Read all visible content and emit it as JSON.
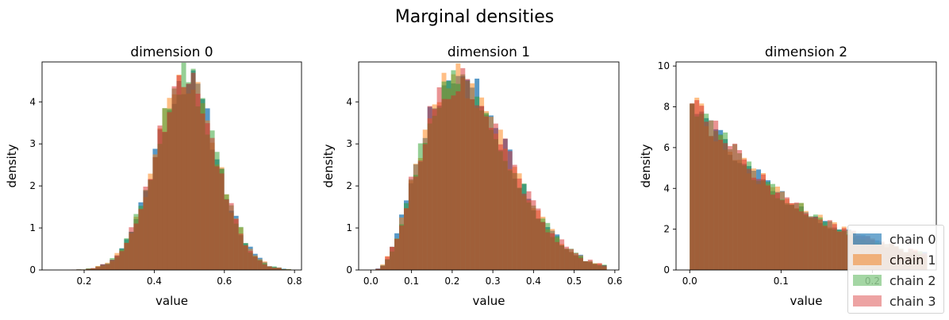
{
  "figure": {
    "title": "Marginal densities"
  },
  "colors": {
    "chain0": "#1f77b4",
    "chain1": "#ff7f0e",
    "chain2": "#2ca02c",
    "chain3": "#d62728"
  },
  "legend": {
    "position": "lower right",
    "entries": [
      {
        "label": "chain 0",
        "color": "#1f77b4"
      },
      {
        "label": "chain 1",
        "color": "#ff7f0e"
      },
      {
        "label": "chain 2",
        "color": "#2ca02c"
      },
      {
        "label": "chain 3",
        "color": "#d62728"
      }
    ]
  },
  "chart_data": [
    {
      "type": "bar",
      "title": "dimension 0",
      "xlabel": "value",
      "ylabel": "density",
      "xlim": [
        0.08,
        0.82
      ],
      "ylim": [
        0,
        4.95
      ],
      "xticks": [
        0.2,
        0.4,
        0.6,
        0.8
      ],
      "xtick_labels": [
        "0.2",
        "0.4",
        "0.6",
        "0.8"
      ],
      "yticks": [
        0,
        1,
        2,
        3,
        4
      ],
      "ytick_labels": [
        "0",
        "1",
        "2",
        "3",
        "4"
      ],
      "bins": {
        "start": 0.11,
        "end": 0.79,
        "count": 50
      },
      "density": {
        "shape": "normal",
        "mean": 0.49,
        "sd": 0.0875,
        "peak": 4.55
      },
      "series": [
        {
          "name": "chain 0",
          "color": "#1f77b4",
          "seed": 11
        },
        {
          "name": "chain 1",
          "color": "#ff7f0e",
          "seed": 23
        },
        {
          "name": "chain 2",
          "color": "#2ca02c",
          "seed": 37
        },
        {
          "name": "chain 3",
          "color": "#d62728",
          "seed": 53
        }
      ]
    },
    {
      "type": "bar",
      "title": "dimension 1",
      "xlabel": "value",
      "ylabel": "density",
      "xlim": [
        -0.03,
        0.61
      ],
      "ylim": [
        0,
        4.95
      ],
      "xticks": [
        0.0,
        0.1,
        0.2,
        0.3,
        0.4,
        0.5,
        0.6
      ],
      "xtick_labels": [
        "0.0",
        "0.1",
        "0.2",
        "0.3",
        "0.4",
        "0.5",
        "0.6"
      ],
      "yticks": [
        0,
        1,
        2,
        3,
        4
      ],
      "ytick_labels": [
        "0",
        "1",
        "2",
        "3",
        "4"
      ],
      "bins": {
        "start": 0.0,
        "end": 0.58,
        "count": 50
      },
      "density": {
        "shape": "beta",
        "a": 4.0,
        "b": 12.0,
        "peak": 4.55
      },
      "series": [
        {
          "name": "chain 0",
          "color": "#1f77b4",
          "seed": 71
        },
        {
          "name": "chain 1",
          "color": "#ff7f0e",
          "seed": 89
        },
        {
          "name": "chain 2",
          "color": "#2ca02c",
          "seed": 97
        },
        {
          "name": "chain 3",
          "color": "#d62728",
          "seed": 113
        }
      ]
    },
    {
      "type": "bar",
      "title": "dimension 2",
      "xlabel": "value",
      "ylabel": "density",
      "xlim": [
        -0.015,
        0.27
      ],
      "ylim": [
        0,
        10.2
      ],
      "xticks": [
        0.0,
        0.1,
        0.2
      ],
      "xtick_labels": [
        "0.0",
        "0.1",
        "0.2"
      ],
      "yticks": [
        0,
        2,
        4,
        6,
        8,
        10
      ],
      "ytick_labels": [
        "0",
        "2",
        "4",
        "6",
        "8",
        "10"
      ],
      "bins": {
        "start": 0.0,
        "end": 0.26,
        "count": 50
      },
      "density": {
        "shape": "beta",
        "a": 1.0,
        "b": 9.0,
        "peak": 8.6
      },
      "series": [
        {
          "name": "chain 0",
          "color": "#1f77b4",
          "seed": 131
        },
        {
          "name": "chain 1",
          "color": "#ff7f0e",
          "seed": 149
        },
        {
          "name": "chain 2",
          "color": "#2ca02c",
          "seed": 163
        },
        {
          "name": "chain 3",
          "color": "#d62728",
          "seed": 181
        }
      ]
    }
  ]
}
